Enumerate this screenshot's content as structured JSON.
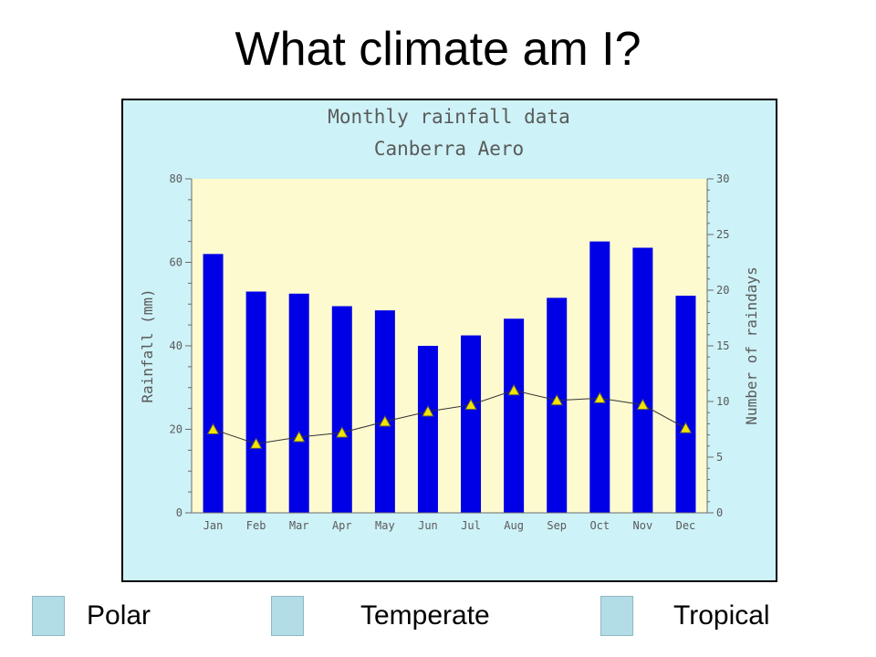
{
  "slide": {
    "title": "What climate am I?"
  },
  "options": [
    {
      "label": "Polar"
    },
    {
      "label": "Temperate"
    },
    {
      "label": "Tropical"
    }
  ],
  "colors": {
    "frame_background": "#cdf2f7",
    "plot_background": "#fdfad0",
    "bars": "#0000e6",
    "markers": "#f5e400",
    "option_box": "#b3dde6"
  },
  "chart_data": {
    "type": "bar",
    "title": "Monthly rainfall data",
    "subtitle": "Canberra Aero",
    "categories": [
      "Jan",
      "Feb",
      "Mar",
      "Apr",
      "May",
      "Jun",
      "Jul",
      "Aug",
      "Sep",
      "Oct",
      "Nov",
      "Dec"
    ],
    "series": [
      {
        "name": "Rainfall (mm)",
        "type": "bar",
        "axis": "left",
        "values": [
          62,
          53,
          52.5,
          49.5,
          48.5,
          40,
          42.5,
          46.5,
          51.5,
          65,
          63.5,
          52
        ]
      },
      {
        "name": "Number of raindays",
        "type": "line",
        "axis": "right",
        "marker": "triangle",
        "values": [
          7.5,
          6.2,
          6.8,
          7.2,
          8.2,
          9.1,
          9.7,
          11,
          10.1,
          10.3,
          9.7,
          7.6
        ]
      }
    ],
    "ylabel": "Rainfall (mm)",
    "ylim": [
      0,
      80
    ],
    "yticks": [
      0,
      20,
      40,
      60,
      80
    ],
    "y2label": "Number of raindays",
    "y2lim": [
      0,
      30
    ],
    "y2ticks": [
      0,
      5,
      10,
      15,
      20,
      25,
      30
    ],
    "grid": false
  }
}
